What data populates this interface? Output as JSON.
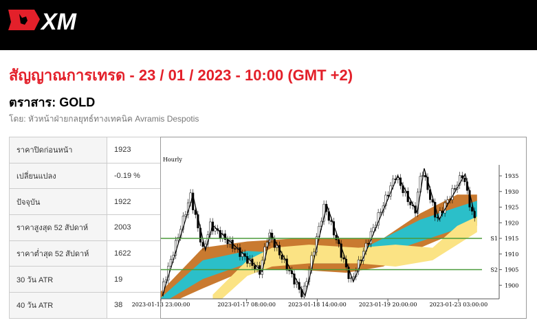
{
  "brand": {
    "logo_text": "XM"
  },
  "header": {
    "title": "สัญญาณการเทรด - 23 / 01 / 2023 - 10:00 (GMT +2)",
    "instrument": "ตราสาร: GOLD",
    "byline": "โดย: หัวหน้าฝ่ายกลยุทธ์ทางเทคนิค Avramis Despotis"
  },
  "table": [
    {
      "label": "ราคาปิดก่อนหน้า",
      "value": "1923"
    },
    {
      "label": "เปลี่ยนแปลง",
      "value": "-0.19 %"
    },
    {
      "label": "ปัจจุบัน",
      "value": "1922"
    },
    {
      "label": "ราคาสูงสุด 52 สัปดาห์",
      "value": "2003"
    },
    {
      "label": "ราคาต่ำสุด 52 สัปดาห์",
      "value": "1622"
    },
    {
      "label": "30 วัน ATR",
      "value": "19"
    },
    {
      "label": "40 วัน ATR",
      "value": "38"
    }
  ],
  "colors": {
    "accent": "#e3202a",
    "orange": "#c97a30",
    "teal": "#2bbfc9",
    "yellow": "#fbe384",
    "level": "#4a9a3a"
  },
  "chart_data": {
    "type": "line",
    "title": "Hourly",
    "ylim": [
      1897,
      1938
    ],
    "xlim": [
      0,
      130
    ],
    "y_ticks": [
      1900,
      1905,
      1910,
      1915,
      1920,
      1925,
      1930,
      1935
    ],
    "x_ticks": [
      {
        "x": 0,
        "label": "2023-01-13 23:00:00"
      },
      {
        "x": 34.7,
        "label": "2023-01-17 08:00:00"
      },
      {
        "x": 63.3,
        "label": "2023-01-18 14:00:00"
      },
      {
        "x": 91.9,
        "label": "2023-01-19 20:00:00"
      },
      {
        "x": 120.5,
        "label": "2023-01-23 03:00:00"
      }
    ],
    "levels": [
      {
        "name": "S1",
        "value": 1915
      },
      {
        "name": "S2",
        "value": 1905
      }
    ],
    "zigzag": [
      [
        0.6,
        1896.6
      ],
      [
        13,
        1928.8
      ],
      [
        18,
        1911.2
      ],
      [
        21,
        1919.2
      ],
      [
        41,
        1904.4
      ],
      [
        44.5,
        1916.7
      ],
      [
        58.4,
        1896.6
      ],
      [
        67.2,
        1925.6
      ],
      [
        77.9,
        1901.1
      ],
      [
        95.9,
        1935.1
      ],
      [
        103.8,
        1923.2
      ],
      [
        106.6,
        1937.4
      ],
      [
        112.6,
        1921
      ],
      [
        123.2,
        1935.6
      ],
      [
        127.4,
        1921.5
      ]
    ],
    "bands": [
      {
        "name": "outer",
        "color": "orange",
        "points": [
          [
            0,
            1893,
            1898
          ],
          [
            17,
            1899,
            1912
          ],
          [
            35,
            1905,
            1914
          ],
          [
            55,
            1905,
            1915
          ],
          [
            75,
            1904,
            1915
          ],
          [
            90,
            1906,
            1915
          ],
          [
            105,
            1912,
            1923
          ],
          [
            120,
            1917,
            1929
          ],
          [
            128,
            1919,
            1929
          ]
        ]
      },
      {
        "name": "inner",
        "color": "teal",
        "points": [
          [
            0,
            1894,
            1896
          ],
          [
            17,
            1902,
            1908
          ],
          [
            35,
            1907,
            1911
          ],
          [
            55,
            1907,
            1910
          ],
          [
            75,
            1907,
            1909
          ],
          [
            90,
            1910,
            1915
          ],
          [
            105,
            1914,
            1921
          ],
          [
            120,
            1918,
            1925
          ],
          [
            128,
            1920,
            1927
          ]
        ]
      },
      {
        "name": "slow",
        "color": "yellow",
        "points": [
          [
            21,
            1893,
            1897
          ],
          [
            35,
            1903,
            1908
          ],
          [
            45,
            1906,
            1912
          ],
          [
            60,
            1907,
            1913
          ],
          [
            80,
            1907,
            1912
          ],
          [
            95,
            1906,
            1913
          ],
          [
            110,
            1908,
            1912
          ],
          [
            120,
            1913,
            1919
          ],
          [
            128,
            1917,
            1922
          ]
        ]
      }
    ]
  }
}
